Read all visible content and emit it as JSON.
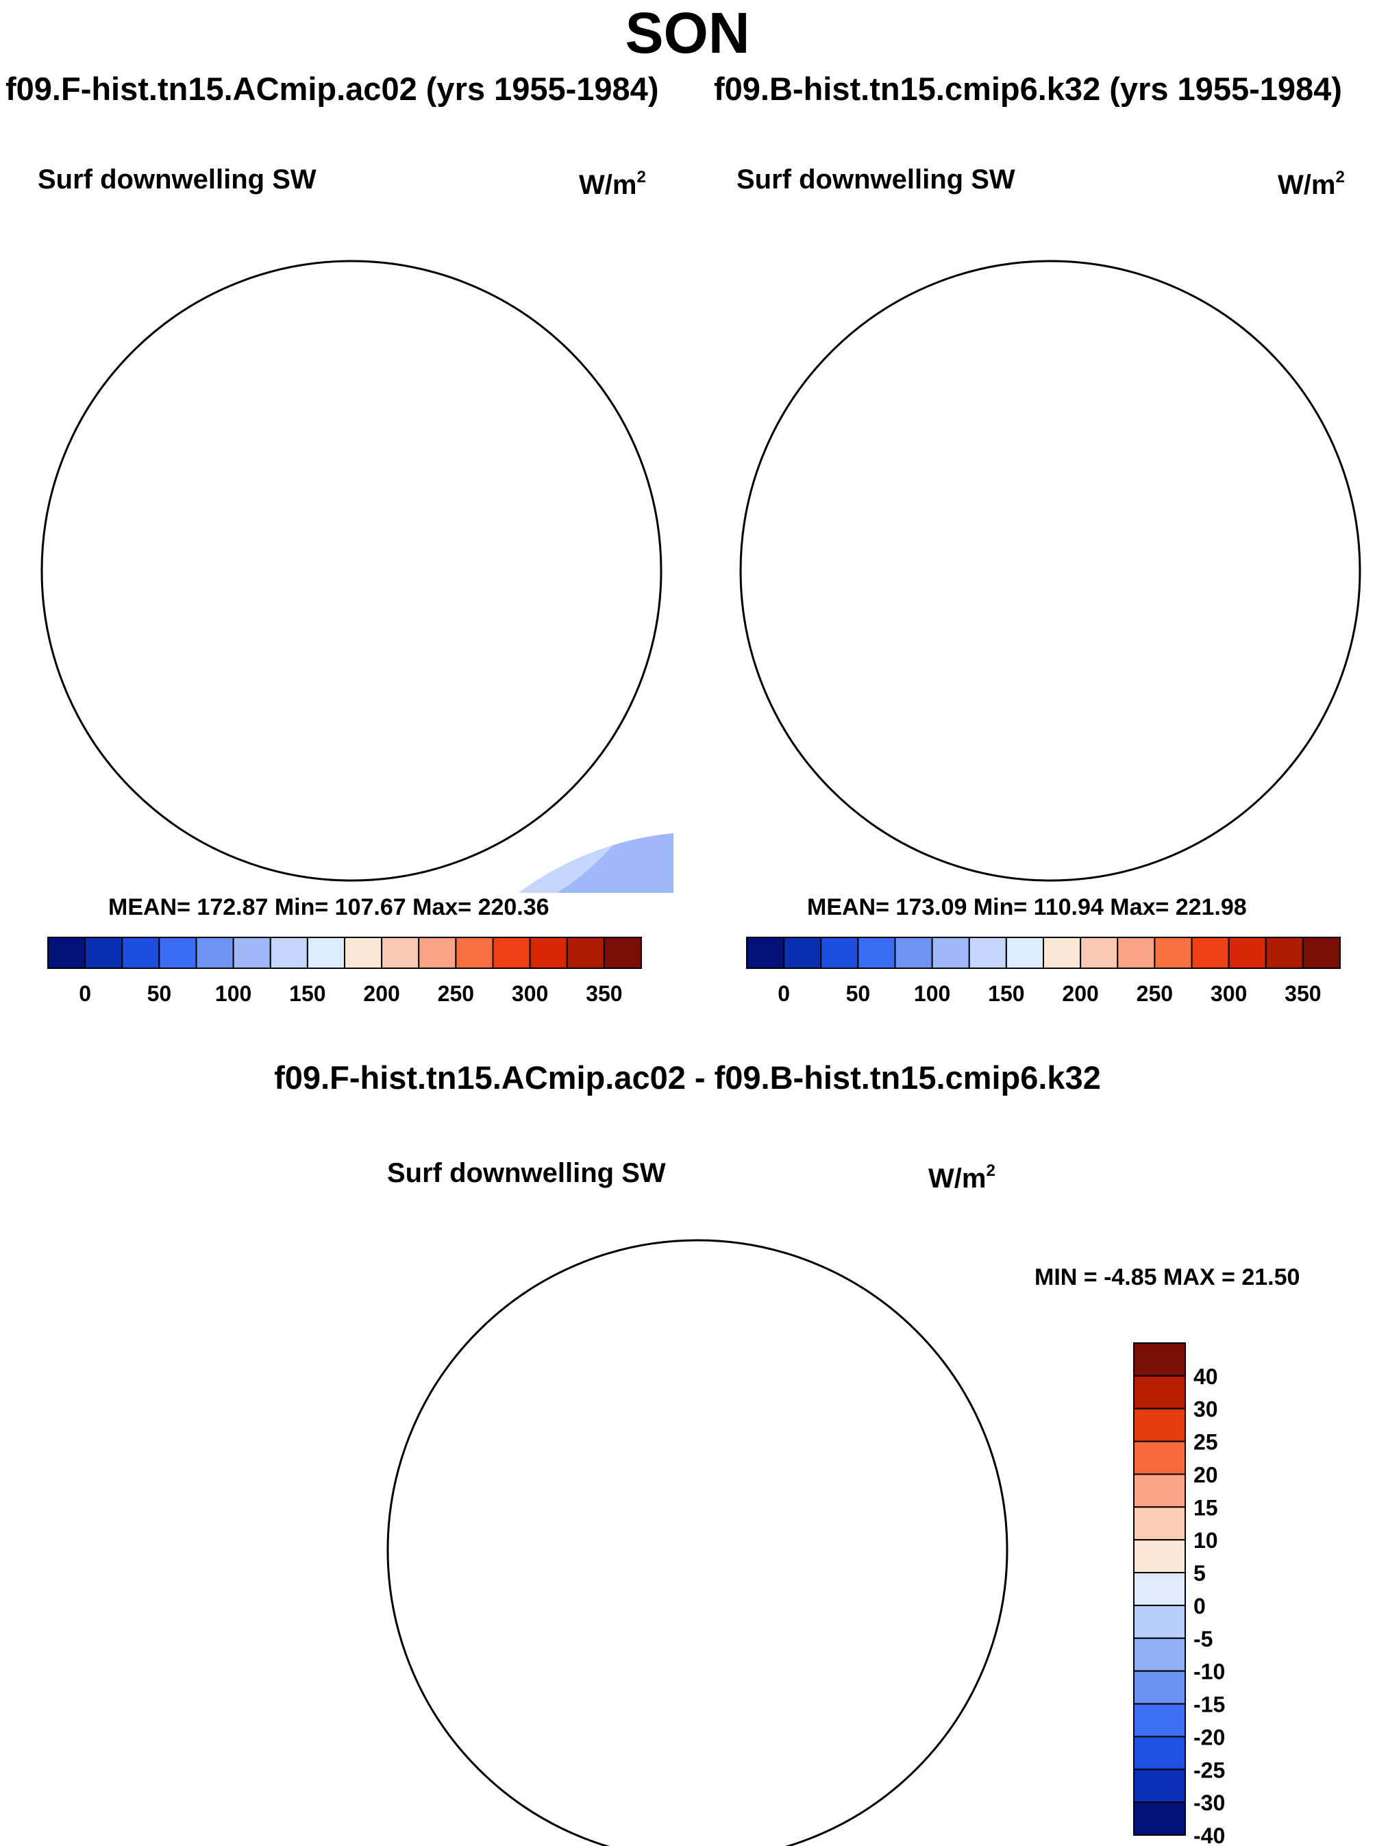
{
  "title": "SON",
  "panels": {
    "left": {
      "case_title": "f09.F-hist.tn15.ACmip.ac02 (yrs 1955-1984)",
      "variable": "Surf downwelling SW",
      "units_base": "W/m",
      "units_sup": "2",
      "stats": "MEAN= 172.87  Min= 107.67  Max= 220.36"
    },
    "right": {
      "case_title": "f09.B-hist.tn15.cmip6.k32 (yrs 1955-1984)",
      "variable": "Surf downwelling SW",
      "units_base": "W/m",
      "units_sup": "2",
      "stats": "MEAN= 173.09  Min= 110.94  Max= 221.98"
    },
    "diff": {
      "case_title": "f09.F-hist.tn15.ACmip.ac02 - f09.B-hist.tn15.cmip6.k32",
      "variable": "Surf downwelling SW",
      "units_base": "W/m",
      "units_sup": "2",
      "stats": "MIN =  -4.85 MAX =  21.50"
    }
  },
  "colorbar_abs": {
    "orientation": "horizontal",
    "colors": [
      "#02117a",
      "#0a2eb0",
      "#1c4ee0",
      "#3a6cf5",
      "#6d93f5",
      "#9fb9f8",
      "#c4d6fb",
      "#deebfc",
      "#fde8d6",
      "#fccab3",
      "#fba486",
      "#f8713f",
      "#ef3f15",
      "#d72805",
      "#ad1b00",
      "#7a0d05"
    ],
    "tick_labels": [
      "0",
      "50",
      "100",
      "150",
      "200",
      "250",
      "300",
      "350"
    ]
  },
  "colorbar_diff": {
    "orientation": "vertical",
    "colors": [
      "#7a0d05",
      "#b71e02",
      "#e33d0d",
      "#f66b3c",
      "#fba486",
      "#fcccb5",
      "#fde8d6",
      "#dfebfc",
      "#b7cdfa",
      "#91aff5",
      "#6b93f4",
      "#3e6ff2",
      "#1f50e2",
      "#0a2fb4",
      "#02117a"
    ],
    "tick_labels": [
      "40",
      "30",
      "25",
      "20",
      "15",
      "10",
      "5",
      "0",
      "-5",
      "-10",
      "-15",
      "-20",
      "-25",
      "-30",
      "-40"
    ]
  }
}
